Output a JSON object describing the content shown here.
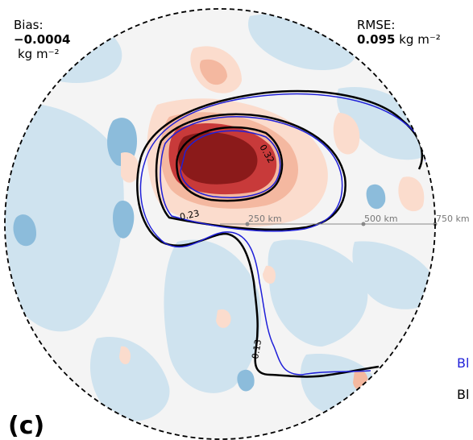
{
  "panel": {
    "label": "(c)",
    "bias": {
      "title": "Bias:",
      "value": "−0.0004",
      "unit": "kg m⁻²"
    },
    "rmse": {
      "title": "RMSE:",
      "value": "0.095",
      "unit": "kg m⁻²"
    }
  },
  "chart_data": {
    "type": "heatmap",
    "projection": "polar (storm-centered, radius 750 km)",
    "colormap": "diverging blue-white-red",
    "range_rings": [
      {
        "radius_km": 250,
        "label": "250 km"
      },
      {
        "radius_km": 500,
        "label": "500 km"
      },
      {
        "radius_km": 750,
        "label": "750 km"
      }
    ],
    "contour_levels": [
      {
        "value": 0.13,
        "label": "0.13"
      },
      {
        "value": 0.23,
        "label": "0.23"
      },
      {
        "value": 0.32,
        "label": "0.32"
      }
    ],
    "legend": [
      {
        "label": "Bl",
        "color": "#1f1fd8"
      },
      {
        "label": "Bl",
        "color": "#000000"
      }
    ]
  },
  "colors": {
    "blue_contour": "#1f1fd8",
    "black_contour": "#000000",
    "dark_red": "#8b1a1a",
    "red": "#c83a3a",
    "light_red": "#f4b8a0",
    "very_light_red": "#fbdccd",
    "light_blue": "#cfe3ef",
    "medium_blue": "#8cbcdb",
    "dark_blue": "#5b9bc8",
    "background": "#f4f4f4"
  }
}
